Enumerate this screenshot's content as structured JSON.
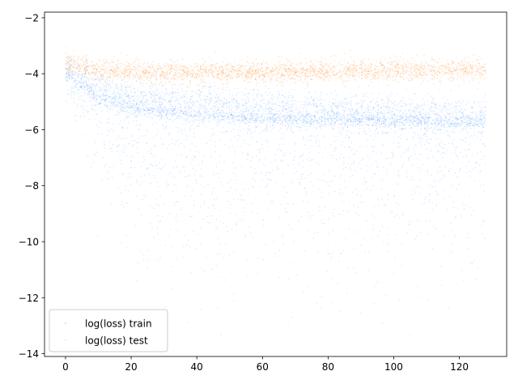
{
  "chart_data": {
    "type": "scatter",
    "title": "",
    "xlabel": "",
    "ylabel": "",
    "xlim": [
      -6.4,
      134.4
    ],
    "ylim": [
      -14.1,
      -1.8
    ],
    "x_ticks": [
      0,
      20,
      40,
      60,
      80,
      100,
      120
    ],
    "y_ticks": [
      -14,
      -12,
      -10,
      -8,
      -6,
      -4,
      -2
    ],
    "x_tick_labels": [
      "0",
      "20",
      "40",
      "60",
      "80",
      "100",
      "120"
    ],
    "y_tick_labels": [
      "−14",
      "−12",
      "−10",
      "−8",
      "−6",
      "−4",
      "−2"
    ],
    "grid": false,
    "legend_position": "lower-left",
    "series": [
      {
        "name": "log(loss) train",
        "color": "#1f77b4",
        "rendered_color": "#1a75ff",
        "marker_alpha": 0.1,
        "x_range": [
          0,
          128
        ],
        "bulk_center": [
          [
            0,
            -3.7
          ],
          [
            10,
            -4.5
          ],
          [
            20,
            -4.85
          ],
          [
            40,
            -5.1
          ],
          [
            60,
            -5.25
          ],
          [
            80,
            -5.35
          ],
          [
            100,
            -5.4
          ],
          [
            128,
            -5.5
          ]
        ],
        "dense_lower_band": [
          [
            0,
            -3.9
          ],
          [
            10,
            -4.85
          ],
          [
            20,
            -5.2
          ],
          [
            40,
            -5.5
          ],
          [
            60,
            -5.6
          ],
          [
            80,
            -5.65
          ],
          [
            100,
            -5.7
          ],
          [
            128,
            -5.75
          ]
        ],
        "lower_tail_reaches": -13.5,
        "top_edge": -3.3
      },
      {
        "name": "log(loss) test",
        "color": "#ff7f0e",
        "rendered_color": "#ff7f0e",
        "marker_alpha": 0.1,
        "x_range": [
          0,
          128
        ],
        "bulk_center": [
          [
            0,
            -3.6
          ],
          [
            10,
            -3.85
          ],
          [
            20,
            -3.95
          ],
          [
            40,
            -3.95
          ],
          [
            60,
            -3.95
          ],
          [
            80,
            -3.9
          ],
          [
            100,
            -3.9
          ],
          [
            128,
            -3.85
          ]
        ],
        "spread": 0.35
      }
    ]
  }
}
